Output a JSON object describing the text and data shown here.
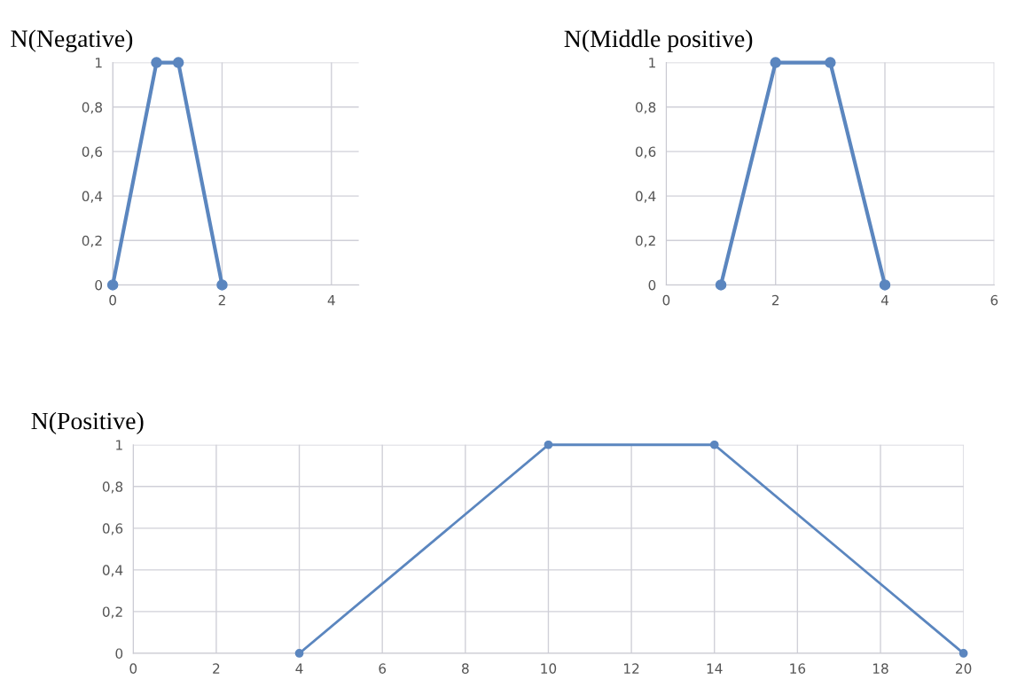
{
  "chart_data": [
    {
      "type": "line",
      "title": "N(Negative)",
      "x": [
        0,
        0.8,
        1.2,
        2
      ],
      "series": [
        {
          "color": "#5b86bf",
          "values": [
            0,
            1,
            1,
            0
          ]
        }
      ],
      "xlim": [
        0,
        4.5
      ],
      "xticks": [
        0,
        2,
        4
      ],
      "ylim": [
        0,
        1
      ],
      "yticks": [
        0,
        {
          "value": 0.2,
          "label": "0,2"
        },
        {
          "value": 0.4,
          "label": "0,4"
        },
        {
          "value": 0.6,
          "label": "0,6"
        },
        {
          "value": 0.8,
          "label": "0,8"
        },
        1
      ],
      "grid": true,
      "marker": "circle",
      "line_style": "solid"
    },
    {
      "type": "line",
      "title": "N(Middle positive)",
      "x": [
        1,
        2,
        3,
        4
      ],
      "series": [
        {
          "color": "#5b86bf",
          "values": [
            0,
            1,
            1,
            0
          ]
        }
      ],
      "xlim": [
        0,
        6
      ],
      "xticks": [
        0,
        2,
        4,
        6
      ],
      "ylim": [
        0,
        1
      ],
      "yticks": [
        0,
        {
          "value": 0.2,
          "label": "0,2"
        },
        {
          "value": 0.4,
          "label": "0,4"
        },
        {
          "value": 0.6,
          "label": "0,6"
        },
        {
          "value": 0.8,
          "label": "0,8"
        },
        1
      ],
      "grid": true,
      "marker": "circle",
      "line_style": "solid"
    },
    {
      "type": "line",
      "title": "N(Positive)",
      "x": [
        4,
        10,
        14,
        20
      ],
      "series": [
        {
          "color": "#5b86bf",
          "values": [
            0,
            1,
            1,
            0
          ]
        }
      ],
      "xlim": [
        0,
        20
      ],
      "xticks": [
        0,
        2,
        4,
        6,
        8,
        10,
        12,
        14,
        16,
        18,
        20
      ],
      "ylim": [
        0,
        1
      ],
      "yticks": [
        0,
        {
          "value": 0.2,
          "label": "0,2"
        },
        {
          "value": 0.4,
          "label": "0,4"
        },
        {
          "value": 0.6,
          "label": "0,6"
        },
        {
          "value": 0.8,
          "label": "0,8"
        },
        1
      ],
      "grid": true,
      "marker": "circle",
      "line_style": "solid"
    }
  ]
}
